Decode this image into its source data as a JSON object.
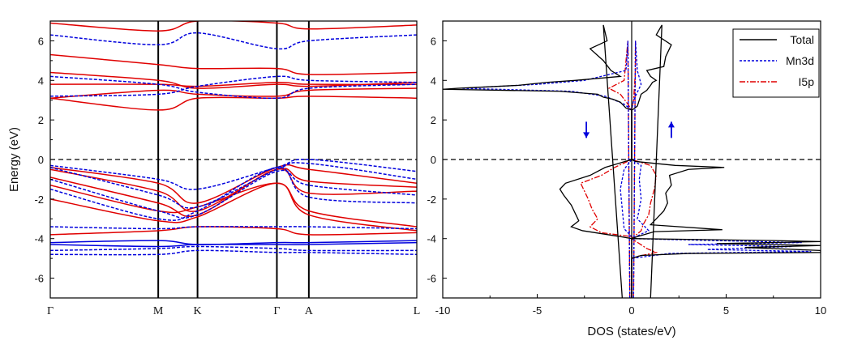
{
  "chart_data": [
    {
      "type": "line",
      "panel": "band-structure",
      "ylabel": "Energy (eV)",
      "ylim": [
        -7,
        7
      ],
      "yticks": [
        -6,
        -4,
        -2,
        0,
        2,
        4,
        6
      ],
      "kpoints": [
        "Γ",
        "M",
        "K",
        "Γ",
        "A",
        "L"
      ],
      "kpoint_positions": [
        0,
        1,
        1.364,
        2.099,
        2.395,
        3.395
      ],
      "fermi_level": 0,
      "colors": {
        "spin_a": "#e00000",
        "spin_b": "#0000dd"
      },
      "series": [
        {
          "spin": "a",
          "style": "solid",
          "y": [
            6.9,
            6.5,
            7.0,
            6.9,
            6.6,
            6.8
          ]
        },
        {
          "spin": "a",
          "style": "solid",
          "y": [
            5.3,
            4.8,
            4.6,
            4.6,
            4.3,
            4.4
          ]
        },
        {
          "spin": "a",
          "style": "solid",
          "y": [
            4.4,
            4.0,
            3.6,
            3.8,
            3.7,
            3.9
          ]
        },
        {
          "spin": "a",
          "style": "solid",
          "y": [
            3.8,
            3.8,
            3.7,
            3.9,
            3.8,
            3.8
          ]
        },
        {
          "spin": "a",
          "style": "solid",
          "y": [
            3.1,
            3.5,
            3.3,
            3.2,
            3.5,
            3.6
          ]
        },
        {
          "spin": "a",
          "style": "solid",
          "y": [
            3.1,
            2.5,
            3.1,
            3.1,
            3.2,
            3.1
          ]
        },
        {
          "spin": "a",
          "style": "solid",
          "y": [
            -0.4,
            -1.2,
            -2.2,
            -0.4,
            -0.5,
            -1.2
          ]
        },
        {
          "spin": "a",
          "style": "solid",
          "y": [
            -0.5,
            -1.6,
            -2.6,
            -0.5,
            -1.1,
            -1.4
          ]
        },
        {
          "spin": "a",
          "style": "solid",
          "y": [
            -0.9,
            -2.2,
            -2.8,
            -0.5,
            -1.7,
            -1.6
          ]
        },
        {
          "spin": "a",
          "style": "solid",
          "y": [
            -1.3,
            -2.6,
            -2.4,
            -1.2,
            -2.6,
            -3.4
          ]
        },
        {
          "spin": "a",
          "style": "solid",
          "y": [
            -2.0,
            -3.1,
            -2.9,
            -1.2,
            -2.8,
            -3.6
          ]
        },
        {
          "spin": "a",
          "style": "solid",
          "y": [
            -3.8,
            -3.6,
            -3.4,
            -3.5,
            -3.8,
            -3.7
          ]
        },
        {
          "spin": "b",
          "style": "dashed",
          "y": [
            6.3,
            5.8,
            6.4,
            5.6,
            6.0,
            6.3
          ]
        },
        {
          "spin": "b",
          "style": "dashed",
          "y": [
            4.2,
            3.8,
            3.4,
            3.1,
            3.6,
            3.8
          ]
        },
        {
          "spin": "b",
          "style": "dashed",
          "y": [
            3.2,
            3.3,
            3.7,
            4.2,
            4.0,
            3.9
          ]
        },
        {
          "spin": "b",
          "style": "dashed",
          "y": [
            -0.3,
            -1.0,
            -1.5,
            -0.4,
            0.0,
            -0.6
          ]
        },
        {
          "spin": "b",
          "style": "dashed",
          "y": [
            -0.4,
            -1.8,
            -2.4,
            -0.5,
            -0.2,
            -1.0
          ]
        },
        {
          "spin": "b",
          "style": "dashed",
          "y": [
            -1.0,
            -2.6,
            -2.8,
            -0.6,
            -1.3,
            -1.8
          ]
        },
        {
          "spin": "b",
          "style": "dashed",
          "y": [
            -1.5,
            -3.0,
            -2.6,
            -0.4,
            -1.9,
            -2.2
          ]
        },
        {
          "spin": "b",
          "style": "dashed",
          "y": [
            -3.4,
            -3.5,
            -3.4,
            -3.4,
            -3.4,
            -3.5
          ]
        },
        {
          "spin": "b",
          "style": "solid",
          "y": [
            -4.2,
            -4.1,
            -4.3,
            -4.2,
            -4.2,
            -4.1
          ]
        },
        {
          "spin": "b",
          "style": "solid",
          "y": [
            -4.3,
            -4.4,
            -4.3,
            -4.3,
            -4.3,
            -4.2
          ]
        },
        {
          "spin": "b",
          "style": "dashed",
          "y": [
            -4.6,
            -4.5,
            -4.4,
            -4.5,
            -4.6,
            -4.6
          ]
        },
        {
          "spin": "b",
          "style": "dashed",
          "y": [
            -4.8,
            -4.8,
            -4.6,
            -4.7,
            -4.7,
            -4.8
          ]
        }
      ]
    },
    {
      "type": "line",
      "panel": "dos",
      "xlabel": "DOS (states/eV)",
      "xlim": [
        -10,
        10
      ],
      "ylim": [
        -7,
        7
      ],
      "xticks": [
        -10,
        -5,
        0,
        5,
        10
      ],
      "yticks": [
        -6,
        -4,
        -2,
        0,
        2,
        4,
        6
      ],
      "fermi_level": 0,
      "legend_position": "top-right",
      "spin_arrows": [
        {
          "direction": "down",
          "x": -2.4,
          "y": 1.5
        },
        {
          "direction": "up",
          "x": 2.1,
          "y": 1.5
        }
      ],
      "series": [
        {
          "name": "Total",
          "color": "#000000",
          "style": "solid",
          "up": [
            [
              -7,
              1.0
            ],
            [
              6.8,
              1.6
            ],
            [
              6.3,
              1.3
            ],
            [
              5.8,
              2.1
            ],
            [
              5.2,
              1.8
            ],
            [
              4.7,
              1.7
            ],
            [
              4.5,
              0.8
            ],
            [
              4.2,
              1.0
            ],
            [
              4.0,
              1.3
            ],
            [
              3.9,
              1.1
            ],
            [
              3.75,
              1.0
            ],
            [
              3.5,
              0.8
            ],
            [
              3.3,
              0.5
            ],
            [
              3.0,
              0.4
            ],
            [
              2.7,
              0.3
            ],
            [
              2.55,
              0.1
            ],
            [
              2.5,
              0
            ],
            [
              0.0,
              0
            ],
            [
              -0.1,
              0.2
            ],
            [
              -0.3,
              2.3
            ],
            [
              -0.4,
              4.9
            ],
            [
              -0.5,
              3.0
            ],
            [
              -0.8,
              2.0
            ],
            [
              -1.3,
              2.1
            ],
            [
              -1.7,
              1.8
            ],
            [
              -2.2,
              1.9
            ],
            [
              -2.6,
              1.7
            ],
            [
              -3.0,
              1.3
            ],
            [
              -3.3,
              1.0
            ],
            [
              -3.55,
              4.8
            ],
            [
              -3.65,
              1.2
            ],
            [
              -3.9,
              0.3
            ],
            [
              -4.0,
              0
            ],
            [
              -4.1,
              7.5
            ],
            [
              -4.15,
              10
            ],
            [
              -4.25,
              4.5
            ],
            [
              -4.35,
              10
            ],
            [
              -4.45,
              6.0
            ],
            [
              -4.6,
              10
            ],
            [
              -4.7,
              10
            ],
            [
              -4.75,
              3.0
            ],
            [
              -4.85,
              0.5
            ],
            [
              -5.0,
              0
            ],
            [
              -7,
              0
            ]
          ],
          "down": [
            [
              -7,
              -0.5
            ],
            [
              6.8,
              -1.5
            ],
            [
              6.0,
              -1.3
            ],
            [
              5.6,
              -2.2
            ],
            [
              5.0,
              -1.5
            ],
            [
              4.5,
              -1.1
            ],
            [
              4.2,
              -0.6
            ],
            [
              4.0,
              -3.0
            ],
            [
              3.9,
              -4.5
            ],
            [
              3.75,
              -6.0
            ],
            [
              3.6,
              -9.2
            ],
            [
              3.55,
              -10
            ],
            [
              3.45,
              -3.8
            ],
            [
              3.3,
              -1.8
            ],
            [
              3.15,
              -1.5
            ],
            [
              3.05,
              -1.0
            ],
            [
              2.9,
              -0.6
            ],
            [
              2.6,
              -0.3
            ],
            [
              2.5,
              0
            ],
            [
              0.0,
              0
            ],
            [
              -0.2,
              -0.7
            ],
            [
              -0.4,
              -1.4
            ],
            [
              -0.8,
              -2.2
            ],
            [
              -1.2,
              -3.5
            ],
            [
              -1.5,
              -3.8
            ],
            [
              -1.8,
              -3.6
            ],
            [
              -2.3,
              -3.2
            ],
            [
              -2.7,
              -3.0
            ],
            [
              -3.1,
              -2.8
            ],
            [
              -3.4,
              -3.2
            ],
            [
              -3.6,
              -2.6
            ],
            [
              -3.9,
              -0.6
            ],
            [
              -4.0,
              0
            ],
            [
              -7,
              0
            ]
          ]
        },
        {
          "name": "Mn3d",
          "color": "#0000dd",
          "style": "dashed",
          "up": [
            [
              -7,
              0.1
            ],
            [
              6.0,
              0.2
            ],
            [
              4.5,
              0.3
            ],
            [
              3.8,
              0.5
            ],
            [
              3.0,
              0.1
            ],
            [
              2.5,
              0
            ],
            [
              0.0,
              0
            ],
            [
              -0.3,
              0.5
            ],
            [
              -1.0,
              0.4
            ],
            [
              -2.0,
              0.5
            ],
            [
              -3.0,
              0.3
            ],
            [
              -3.6,
              0.9
            ],
            [
              -4.0,
              0
            ],
            [
              -4.1,
              4.5
            ],
            [
              -4.2,
              9.0
            ],
            [
              -4.3,
              3.0
            ],
            [
              -4.4,
              8.5
            ],
            [
              -4.55,
              4.0
            ],
            [
              -4.65,
              9.5
            ],
            [
              -4.75,
              2.0
            ],
            [
              -5.0,
              0
            ],
            [
              -7,
              0
            ]
          ],
          "down": [
            [
              -7,
              -0.1
            ],
            [
              6.0,
              -0.2
            ],
            [
              4.5,
              -0.3
            ],
            [
              4.0,
              -2.5
            ],
            [
              3.8,
              -5.0
            ],
            [
              3.6,
              -9.0
            ],
            [
              3.45,
              -3.2
            ],
            [
              3.2,
              -1.4
            ],
            [
              2.8,
              -0.4
            ],
            [
              2.5,
              0
            ],
            [
              0.0,
              0
            ],
            [
              -0.5,
              -0.4
            ],
            [
              -1.5,
              -0.6
            ],
            [
              -2.5,
              -0.5
            ],
            [
              -3.5,
              -0.4
            ],
            [
              -3.9,
              0
            ],
            [
              -7,
              0
            ]
          ]
        },
        {
          "name": "I5p",
          "color": "#e00000",
          "style": "dashdot",
          "up": [
            [
              -7,
              0.1
            ],
            [
              6.0,
              0.2
            ],
            [
              4.5,
              0.2
            ],
            [
              3.0,
              0.1
            ],
            [
              2.5,
              0
            ],
            [
              0.0,
              0
            ],
            [
              -0.3,
              1.0
            ],
            [
              -0.8,
              1.3
            ],
            [
              -1.5,
              1.2
            ],
            [
              -2.2,
              1.0
            ],
            [
              -2.8,
              0.9
            ],
            [
              -3.3,
              0.6
            ],
            [
              -3.6,
              0.5
            ],
            [
              -4.0,
              0
            ],
            [
              -4.5,
              0.8
            ],
            [
              -4.7,
              1.3
            ],
            [
              -4.9,
              0.3
            ],
            [
              -5.0,
              0
            ],
            [
              -7,
              0
            ]
          ],
          "down": [
            [
              -7,
              -0.1
            ],
            [
              6.0,
              -0.2
            ],
            [
              4.0,
              -0.4
            ],
            [
              3.6,
              -1.2
            ],
            [
              3.3,
              -0.6
            ],
            [
              2.8,
              -0.2
            ],
            [
              2.5,
              0
            ],
            [
              0.0,
              0
            ],
            [
              -0.4,
              -0.9
            ],
            [
              -0.8,
              -1.6
            ],
            [
              -1.2,
              -2.7
            ],
            [
              -1.6,
              -2.5
            ],
            [
              -2.0,
              -2.3
            ],
            [
              -2.5,
              -2.1
            ],
            [
              -3.0,
              -1.8
            ],
            [
              -3.4,
              -2.2
            ],
            [
              -3.7,
              -1.6
            ],
            [
              -3.9,
              0
            ],
            [
              -7,
              0
            ]
          ]
        }
      ]
    }
  ]
}
